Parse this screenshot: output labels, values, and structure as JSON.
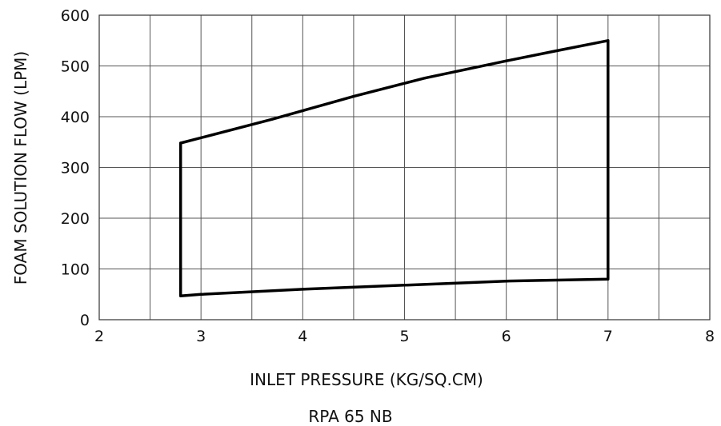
{
  "chart_data": {
    "type": "line",
    "title": "RPA 65 NB",
    "xlabel": "INLET PRESSURE (KG/SQ.CM)",
    "ylabel": "FOAM SOLUTION FLOW (LPM)",
    "xlim": [
      2,
      8
    ],
    "ylim": [
      0,
      600
    ],
    "x_ticks": [
      2,
      3,
      4,
      5,
      6,
      7,
      8
    ],
    "y_ticks": [
      0,
      100,
      200,
      300,
      400,
      500,
      600
    ],
    "x_grid_step": 0.5,
    "y_grid_step": 100,
    "grid": true,
    "legend": "none",
    "series": [
      {
        "x": [
          2.8,
          3.7,
          4.5,
          5.2,
          6.0,
          6.5,
          7.0,
          7.0,
          6.0,
          5.0,
          4.0,
          3.0,
          2.8,
          2.8
        ],
        "y": [
          348,
          395,
          440,
          476,
          510,
          530,
          550,
          80,
          76,
          68,
          60,
          50,
          47,
          348
        ]
      }
    ],
    "line_color": "#000000",
    "grid_color": "#555555"
  }
}
